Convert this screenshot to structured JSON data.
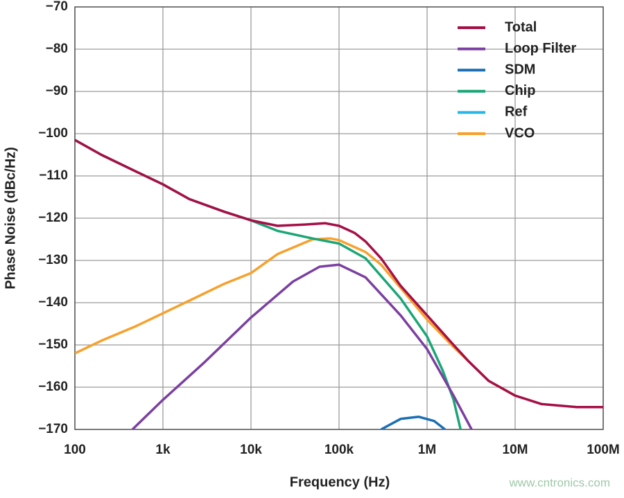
{
  "chart_data": {
    "type": "line",
    "x_label": "Frequency (Hz)",
    "y_label": "Phase Noise (dBc/Hz)",
    "xscale": "log",
    "xlim": [
      100,
      100000000
    ],
    "xticks": [
      100,
      {
        "value": 1000,
        "label": "1k"
      },
      {
        "value": 10000,
        "label": "10k"
      },
      {
        "value": 100000,
        "label": "100k"
      },
      {
        "value": 1000000,
        "label": "1M"
      },
      {
        "value": 10000000,
        "label": "10M"
      },
      {
        "value": 100000000,
        "label": "100M"
      }
    ],
    "ylim": [
      -170,
      -70
    ],
    "yticks": [
      {
        "value": -170,
        "label": "−170"
      },
      {
        "value": -160,
        "label": "−160"
      },
      {
        "value": -150,
        "label": "−150"
      },
      {
        "value": -140,
        "label": "−140"
      },
      {
        "value": -130,
        "label": "−130"
      },
      {
        "value": -120,
        "label": "−120"
      },
      {
        "value": -110,
        "label": "−110"
      },
      {
        "value": -100,
        "label": "−100"
      },
      {
        "value": -90,
        "label": "−90"
      },
      {
        "value": -80,
        "label": "−80"
      },
      {
        "value": -70,
        "label": "−70"
      }
    ],
    "grid": true,
    "legend": "top-right",
    "watermark": "www.cntronics.com",
    "series": [
      {
        "name": "Total",
        "color": "#a50f46",
        "x": [
          100,
          200,
          500,
          1000,
          2000,
          5000,
          10000,
          20000,
          40000,
          70000,
          100000,
          150000,
          200000,
          300000,
          500000,
          1000000,
          2000000,
          3000000,
          5000000,
          10000000,
          20000000,
          50000000,
          100000000
        ],
        "values": [
          -101.5,
          -105,
          -109,
          -112,
          -115.5,
          -118.5,
          -120.5,
          -121.8,
          -121.5,
          -121.2,
          -121.8,
          -123.5,
          -125.5,
          -129.5,
          -136,
          -143,
          -150,
          -154,
          -158.5,
          -162,
          -164,
          -164.7,
          -164.7
        ]
      },
      {
        "name": "Loop Filter",
        "color": "#7b3fa0",
        "x": [
          450,
          1000,
          3000,
          10000,
          30000,
          60000,
          100000,
          200000,
          500000,
          1000000,
          2000000,
          3200000
        ],
        "values": [
          -170,
          -163,
          -154,
          -143.5,
          -135,
          -131.5,
          -131,
          -134,
          -143,
          -151,
          -162,
          -170
        ]
      },
      {
        "name": "SDM",
        "color": "#1a6fb4",
        "x": [
          300000,
          500000,
          800000,
          1200000,
          1600000
        ],
        "values": [
          -170,
          -167.5,
          -167,
          -168,
          -170
        ]
      },
      {
        "name": "Chip",
        "color": "#1aa676",
        "x": [
          100,
          200,
          500,
          1000,
          2000,
          5000,
          10000,
          20000,
          50000,
          100000,
          200000,
          500000,
          1000000,
          1500000,
          2000000,
          2400000
        ],
        "values": [
          -101.5,
          -105,
          -109,
          -112,
          -115.5,
          -118.5,
          -120.5,
          -123,
          -124.8,
          -126,
          -129.5,
          -139,
          -148,
          -156,
          -163,
          -170
        ]
      },
      {
        "name": "Ref",
        "color": "#27b6e6",
        "x": [],
        "values": []
      },
      {
        "name": "VCO",
        "color": "#f7a12c",
        "x": [
          100,
          200,
          500,
          1000,
          2000,
          5000,
          10000,
          20000,
          50000,
          80000,
          100000,
          200000,
          300000,
          500000,
          1000000,
          2000000,
          3000000,
          5000000,
          10000000
        ],
        "values": [
          -152,
          -149,
          -145.5,
          -142.5,
          -139.5,
          -135.5,
          -133,
          -128.5,
          -125,
          -124.8,
          -125.2,
          -128,
          -131,
          -136.5,
          -144,
          -150.5,
          -154,
          -158.5,
          -162
        ]
      }
    ]
  }
}
